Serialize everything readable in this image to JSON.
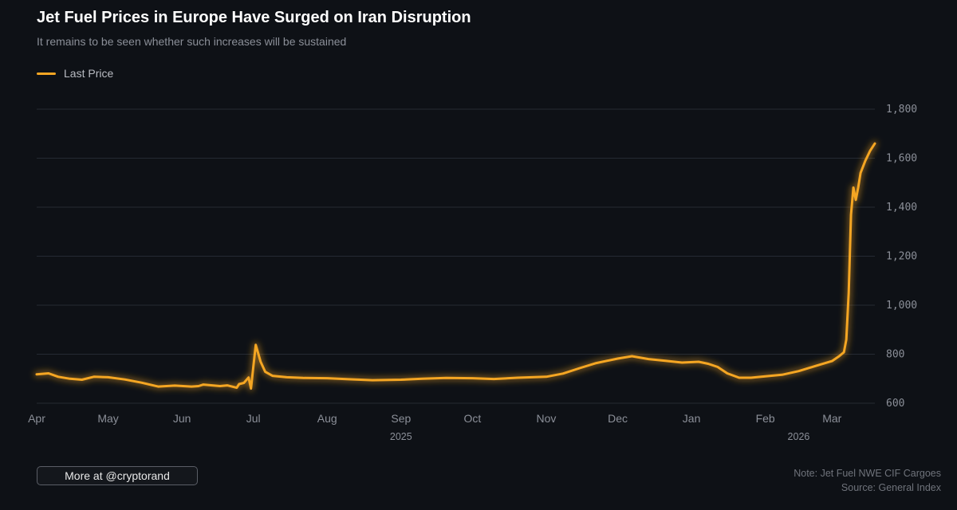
{
  "title": "Jet Fuel Prices in Europe Have Surged on Iran Disruption",
  "subtitle": "It remains to be seen whether such increases will be sustained",
  "legend": {
    "label": "Last Price",
    "color": "#f5a623"
  },
  "footer": {
    "button_label": "More at @cryptorand",
    "note": "Note: Jet Fuel NWE CIF Cargoes",
    "source": "Source: General Index"
  },
  "colors": {
    "background": "#0e1116",
    "line": "#f5a623",
    "grid": "#252a33",
    "tick_text": "#8b8f98"
  },
  "chart_data": {
    "type": "line",
    "title": "Jet Fuel Prices in Europe Have Surged on Iran Disruption",
    "subtitle": "It remains to be seen whether such increases will be sustained",
    "xlabel": "",
    "ylabel": "",
    "ylim": [
      600,
      1800
    ],
    "yticks": [
      600,
      800,
      1000,
      1200,
      1400,
      1600,
      1800
    ],
    "ytick_labels": [
      "600",
      "800",
      "1,000",
      "1,200",
      "1,400",
      "1,600",
      "1,800"
    ],
    "xlim": [
      "2025-04-01",
      "2026-03-19"
    ],
    "xticks": [
      {
        "date": "2025-04-01",
        "label": "Apr"
      },
      {
        "date": "2025-05-01",
        "label": "May"
      },
      {
        "date": "2025-06-01",
        "label": "Jun"
      },
      {
        "date": "2025-07-01",
        "label": "Jul"
      },
      {
        "date": "2025-08-01",
        "label": "Aug"
      },
      {
        "date": "2025-09-01",
        "label": "Sep"
      },
      {
        "date": "2025-10-01",
        "label": "Oct"
      },
      {
        "date": "2025-11-01",
        "label": "Nov"
      },
      {
        "date": "2025-12-01",
        "label": "Dec"
      },
      {
        "date": "2026-01-01",
        "label": "Jan"
      },
      {
        "date": "2026-02-01",
        "label": "Feb"
      },
      {
        "date": "2026-03-01",
        "label": "Mar"
      }
    ],
    "year_labels": [
      {
        "date": "2025-09-01",
        "label": "2025"
      },
      {
        "date": "2026-02-15",
        "label": "2026"
      }
    ],
    "grid": true,
    "y_axis_position": "right",
    "legend_position": "top-left",
    "series": [
      {
        "name": "Last Price",
        "color": "#f5a623",
        "points": [
          [
            "2025-04-01",
            718
          ],
          [
            "2025-04-06",
            722
          ],
          [
            "2025-04-10",
            708
          ],
          [
            "2025-04-15",
            700
          ],
          [
            "2025-04-20",
            696
          ],
          [
            "2025-04-25",
            708
          ],
          [
            "2025-05-01",
            706
          ],
          [
            "2025-05-08",
            697
          ],
          [
            "2025-05-15",
            684
          ],
          [
            "2025-05-22",
            668
          ],
          [
            "2025-05-29",
            672
          ],
          [
            "2025-06-05",
            668
          ],
          [
            "2025-06-10",
            676
          ],
          [
            "2025-06-17",
            670
          ],
          [
            "2025-06-24",
            663
          ],
          [
            "2025-06-30",
            660
          ],
          [
            "2025-06-05",
            668
          ],
          [
            "2025-06-08",
            670
          ],
          [
            "2025-06-20",
            673
          ],
          [
            "2025-06-25",
            678
          ],
          [
            "2025-06-27",
            683
          ],
          [
            "2025-06-29",
            705
          ],
          [
            "2025-07-01",
            750
          ],
          [
            "2025-07-02",
            838
          ],
          [
            "2025-07-04",
            770
          ],
          [
            "2025-07-06",
            728
          ],
          [
            "2025-07-09",
            712
          ],
          [
            "2025-07-15",
            706
          ],
          [
            "2025-07-22",
            703
          ],
          [
            "2025-08-01",
            702
          ],
          [
            "2025-08-10",
            698
          ],
          [
            "2025-08-20",
            694
          ],
          [
            "2025-09-01",
            696
          ],
          [
            "2025-09-10",
            700
          ],
          [
            "2025-09-20",
            703
          ],
          [
            "2025-10-01",
            702
          ],
          [
            "2025-10-10",
            699
          ],
          [
            "2025-10-20",
            704
          ],
          [
            "2025-11-01",
            708
          ],
          [
            "2025-11-08",
            721
          ],
          [
            "2025-11-15",
            743
          ],
          [
            "2025-11-22",
            764
          ],
          [
            "2025-12-01",
            782
          ],
          [
            "2025-12-07",
            792
          ],
          [
            "2025-12-14",
            780
          ],
          [
            "2025-12-21",
            773
          ],
          [
            "2025-12-28",
            766
          ],
          [
            "2026-01-04",
            769
          ],
          [
            "2026-01-08",
            761
          ],
          [
            "2026-01-12",
            748
          ],
          [
            "2026-01-16",
            722
          ],
          [
            "2026-01-21",
            704
          ],
          [
            "2026-01-26",
            704
          ],
          [
            "2026-02-01",
            710
          ],
          [
            "2026-02-08",
            716
          ],
          [
            "2026-02-15",
            731
          ],
          [
            "2026-02-22",
            752
          ],
          [
            "2026-03-01",
            772
          ],
          [
            "2026-03-04",
            792
          ],
          [
            "2026-03-06",
            808
          ],
          [
            "2026-03-07",
            860
          ],
          [
            "2026-03-08",
            1050
          ],
          [
            "2026-03-09",
            1370
          ],
          [
            "2026-03-10",
            1480
          ],
          [
            "2026-03-11",
            1430
          ],
          [
            "2026-03-12",
            1480
          ],
          [
            "2026-03-13",
            1540
          ],
          [
            "2026-03-15",
            1590
          ],
          [
            "2026-03-17",
            1630
          ],
          [
            "2026-03-19",
            1660
          ]
        ]
      }
    ]
  }
}
